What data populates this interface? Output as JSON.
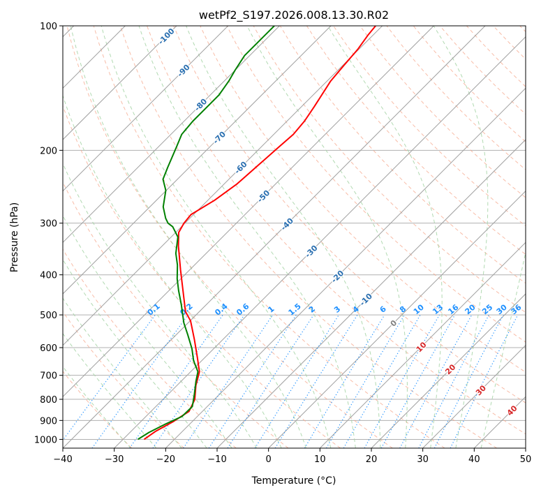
{
  "chart_data": {
    "type": "line",
    "subtype": "skew-t log-p",
    "title": "wetPf2_S197.2026.008.13.30.R02",
    "xlabel": "Temperature (°C)",
    "ylabel": "Pressure (hPa)",
    "xlim": [
      -40,
      50
    ],
    "ylim": [
      1050,
      100
    ],
    "grid": true,
    "x_ticks": [
      "−40",
      "−30",
      "−20",
      "−10",
      "0",
      "10",
      "20",
      "30",
      "40",
      "50"
    ],
    "x_tick_values": [
      -40,
      -30,
      -20,
      -10,
      0,
      10,
      20,
      30,
      40,
      50
    ],
    "y_ticks": [
      "100",
      "200",
      "300",
      "400",
      "500",
      "600",
      "700",
      "800",
      "900",
      "1000"
    ],
    "y_tick_values": [
      100,
      200,
      300,
      400,
      500,
      600,
      700,
      800,
      900,
      1000
    ],
    "isotherm_labels": [
      {
        "t": -100,
        "text": "-100"
      },
      {
        "t": -90,
        "text": "-90"
      },
      {
        "t": -80,
        "text": "-80"
      },
      {
        "t": -70,
        "text": "-70"
      },
      {
        "t": -60,
        "text": "-60"
      },
      {
        "t": -50,
        "text": "-50"
      },
      {
        "t": -40,
        "text": "-40"
      },
      {
        "t": -30,
        "text": "-30"
      },
      {
        "t": -20,
        "text": "-20"
      },
      {
        "t": -10,
        "text": "-10"
      },
      {
        "t": 0,
        "text": "0"
      },
      {
        "t": 10,
        "text": "10"
      },
      {
        "t": 20,
        "text": "20"
      },
      {
        "t": 30,
        "text": "30"
      },
      {
        "t": 40,
        "text": "40"
      }
    ],
    "mixing_ratios": [
      {
        "w": 0.1,
        "text": "0.1"
      },
      {
        "w": 0.2,
        "text": "0.2"
      },
      {
        "w": 0.4,
        "text": "0.4"
      },
      {
        "w": 0.6,
        "text": "0.6"
      },
      {
        "w": 1,
        "text": "1"
      },
      {
        "w": 1.5,
        "text": "1.5"
      },
      {
        "w": 2,
        "text": "2"
      },
      {
        "w": 3,
        "text": "3"
      },
      {
        "w": 4,
        "text": "4"
      },
      {
        "w": 6,
        "text": "6"
      },
      {
        "w": 8,
        "text": "8"
      },
      {
        "w": 10,
        "text": "10"
      },
      {
        "w": 13,
        "text": "13"
      },
      {
        "w": 16,
        "text": "16"
      },
      {
        "w": 20,
        "text": "20"
      },
      {
        "w": 25,
        "text": "25"
      },
      {
        "w": 30,
        "text": "30"
      },
      {
        "w": 36,
        "text": "36"
      }
    ],
    "series": [
      {
        "name": "temperature",
        "color": "#ff0000",
        "points": [
          [
            1000,
            -25.9
          ],
          [
            955,
            -25.2
          ],
          [
            907,
            -23.7
          ],
          [
            856,
            -22.6
          ],
          [
            801,
            -23.8
          ],
          [
            741,
            -26.3
          ],
          [
            686,
            -28.3
          ],
          [
            635,
            -31.4
          ],
          [
            574,
            -35.5
          ],
          [
            517,
            -39.9
          ],
          [
            491,
            -42.7
          ],
          [
            442,
            -46.8
          ],
          [
            389,
            -51.8
          ],
          [
            341,
            -56.8
          ],
          [
            316,
            -59.4
          ],
          [
            300,
            -60.2
          ],
          [
            286,
            -60.5
          ],
          [
            264,
            -58.7
          ],
          [
            241,
            -57.5
          ],
          [
            217,
            -57.0
          ],
          [
            198,
            -56.6
          ],
          [
            183,
            -56.2
          ],
          [
            170,
            -56.6
          ],
          [
            157,
            -57.5
          ],
          [
            136,
            -59.3
          ],
          [
            124,
            -59.8
          ],
          [
            114,
            -60.2
          ],
          [
            105,
            -61.0
          ],
          [
            100,
            -61.3
          ]
        ]
      },
      {
        "name": "dewpoint",
        "color": "#008000",
        "points": [
          [
            1000,
            -27.1
          ],
          [
            962,
            -26.3
          ],
          [
            918,
            -24.7
          ],
          [
            880,
            -23.0
          ],
          [
            833,
            -22.9
          ],
          [
            783,
            -24.7
          ],
          [
            724,
            -27.1
          ],
          [
            686,
            -28.6
          ],
          [
            645,
            -31.6
          ],
          [
            604,
            -34.2
          ],
          [
            558,
            -37.8
          ],
          [
            523,
            -40.8
          ],
          [
            473,
            -44.8
          ],
          [
            437,
            -48.1
          ],
          [
            409,
            -50.7
          ],
          [
            379,
            -53.3
          ],
          [
            355,
            -55.9
          ],
          [
            324,
            -58.7
          ],
          [
            306,
            -61.7
          ],
          [
            300,
            -63.3
          ],
          [
            292,
            -64.7
          ],
          [
            274,
            -67.4
          ],
          [
            250,
            -70.1
          ],
          [
            235,
            -72.8
          ],
          [
            220,
            -74.2
          ],
          [
            196,
            -76.5
          ],
          [
            183,
            -77.9
          ],
          [
            170,
            -78.3
          ],
          [
            159,
            -78.3
          ],
          [
            147,
            -78.3
          ],
          [
            136,
            -79.1
          ],
          [
            128,
            -80.0
          ],
          [
            118,
            -81.0
          ],
          [
            109,
            -81.0
          ],
          [
            100,
            -81.0
          ]
        ]
      }
    ],
    "colors": {
      "isotherm": "#a0a0a0",
      "dry_adiabat": "#f5a58a",
      "moist_adiabat": "#a8d5a8",
      "mixing_ratio": "#1e90ff",
      "label_negative": "#2a6fb0",
      "label_zero": "#808080",
      "label_positive": "#d62728"
    }
  }
}
